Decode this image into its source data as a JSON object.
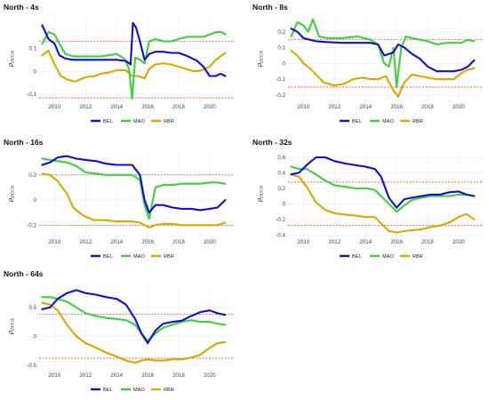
{
  "colors": {
    "BEL": "#1010c8",
    "MAO": "#3fcf3f",
    "RBR": "#dba800",
    "threshold": "#c0392b"
  },
  "y_axis_label": "ρ",
  "y_axis_label_sub": "DCCA",
  "chart_data": [
    {
      "type": "line",
      "title": "North - 4s",
      "xlim": [
        2009,
        2021.5
      ],
      "xticks": [
        2010,
        2012,
        2014,
        2016,
        2018,
        2020
      ],
      "ylim": [
        -0.13,
        0.24
      ],
      "yticks": [
        -0.1,
        0.0,
        0.1
      ],
      "thresholds": [
        0.13,
        -0.115
      ],
      "legend": [
        "BEL",
        "MAO",
        "RBR"
      ],
      "series": [
        {
          "name": "BEL",
          "x": [
            2009.2,
            2009.6,
            2010.0,
            2010.3,
            2010.7,
            2011.2,
            2012.0,
            2013.0,
            2014.0,
            2014.6,
            2014.9,
            2015.05,
            2015.25,
            2015.5,
            2015.8,
            2016.1,
            2016.5,
            2017.0,
            2017.5,
            2018.0,
            2018.6,
            2019.2,
            2019.6,
            2020.0,
            2020.4,
            2020.7,
            2021.0
          ],
          "y": [
            0.2,
            0.14,
            0.12,
            0.07,
            0.055,
            0.05,
            0.05,
            0.05,
            0.05,
            0.045,
            0.03,
            0.21,
            0.19,
            0.13,
            0.05,
            0.075,
            0.085,
            0.085,
            0.08,
            0.08,
            0.065,
            0.045,
            0.02,
            -0.02,
            -0.02,
            -0.01,
            -0.02
          ]
        },
        {
          "name": "MAO",
          "x": [
            2009.2,
            2009.6,
            2010.0,
            2010.3,
            2010.7,
            2011.2,
            2012.0,
            2013.0,
            2014.0,
            2014.5,
            2014.8,
            2015.0,
            2015.2,
            2015.5,
            2015.8,
            2016.1,
            2016.5,
            2017.0,
            2017.5,
            2018.0,
            2018.6,
            2019.2,
            2019.6,
            2020.0,
            2020.4,
            2020.8,
            2021.0
          ],
          "y": [
            0.12,
            0.17,
            0.16,
            0.12,
            0.075,
            0.065,
            0.065,
            0.065,
            0.075,
            0.055,
            0.01,
            -0.12,
            0.06,
            0.05,
            0.035,
            0.13,
            0.14,
            0.13,
            0.13,
            0.14,
            0.15,
            0.15,
            0.15,
            0.16,
            0.17,
            0.17,
            0.16
          ]
        },
        {
          "name": "RBR",
          "x": [
            2009.2,
            2009.6,
            2010.0,
            2010.4,
            2010.8,
            2011.3,
            2012.0,
            2012.6,
            2013.0,
            2013.5,
            2014.0,
            2014.6,
            2015.0,
            2015.4,
            2015.8,
            2016.1,
            2016.5,
            2017.0,
            2017.5,
            2018.0,
            2018.5,
            2019.0,
            2019.5,
            2020.0,
            2020.4,
            2020.8,
            2021.0
          ],
          "y": [
            0.07,
            0.09,
            0.03,
            -0.02,
            -0.035,
            -0.045,
            -0.025,
            -0.02,
            -0.01,
            -0.005,
            0.005,
            0.005,
            -0.02,
            -0.02,
            -0.03,
            0.01,
            0.03,
            0.035,
            0.03,
            0.02,
            0.01,
            0.0,
            0.005,
            0.02,
            0.05,
            0.07,
            0.08
          ]
        }
      ]
    },
    {
      "type": "line",
      "title": "North - 8s",
      "xlim": [
        2009,
        2021.5
      ],
      "xticks": [
        2010,
        2012,
        2014,
        2016,
        2018,
        2020
      ],
      "ylim": [
        -0.24,
        0.3
      ],
      "yticks": [
        -0.2,
        -0.1,
        0.0,
        0.1,
        0.2
      ],
      "thresholds": [
        0.15,
        -0.15
      ],
      "legend": [
        "BEL",
        "MAO",
        "RBR"
      ],
      "series": [
        {
          "name": "BEL",
          "x": [
            2009.2,
            2009.6,
            2010.0,
            2010.4,
            2010.8,
            2011.5,
            2012.5,
            2013.5,
            2014.3,
            2014.8,
            2015.2,
            2015.5,
            2015.8,
            2016.1,
            2016.5,
            2017.0,
            2017.5,
            2018.0,
            2018.6,
            2019.2,
            2019.7,
            2020.2,
            2020.6,
            2021.0
          ],
          "y": [
            0.22,
            0.2,
            0.16,
            0.15,
            0.14,
            0.135,
            0.13,
            0.13,
            0.13,
            0.12,
            0.05,
            0.06,
            0.07,
            0.12,
            0.1,
            0.06,
            0.03,
            -0.02,
            -0.05,
            -0.05,
            -0.05,
            -0.04,
            -0.02,
            0.02
          ]
        },
        {
          "name": "MAO",
          "x": [
            2009.2,
            2009.6,
            2010.0,
            2010.3,
            2010.6,
            2011.0,
            2011.5,
            2012.5,
            2013.5,
            2014.3,
            2014.8,
            2015.2,
            2015.5,
            2015.8,
            2016.0,
            2016.3,
            2016.6,
            2017.0,
            2017.5,
            2018.0,
            2018.6,
            2019.2,
            2019.7,
            2020.2,
            2020.6,
            2021.0
          ],
          "y": [
            0.17,
            0.26,
            0.24,
            0.2,
            0.28,
            0.17,
            0.16,
            0.16,
            0.17,
            0.15,
            0.12,
            0.0,
            -0.02,
            0.1,
            -0.15,
            0.1,
            0.17,
            0.16,
            0.15,
            0.14,
            0.12,
            0.13,
            0.13,
            0.13,
            0.15,
            0.14
          ]
        },
        {
          "name": "RBR",
          "x": [
            2009.2,
            2009.6,
            2010.0,
            2010.4,
            2010.8,
            2011.3,
            2012.0,
            2012.6,
            2013.2,
            2013.8,
            2014.3,
            2014.8,
            2015.3,
            2015.8,
            2016.1,
            2016.5,
            2017.0,
            2017.5,
            2018.0,
            2018.6,
            2019.2,
            2019.7,
            2020.2,
            2020.6,
            2021.0
          ],
          "y": [
            0.08,
            0.05,
            0.0,
            -0.03,
            -0.07,
            -0.12,
            -0.14,
            -0.13,
            -0.1,
            -0.09,
            -0.1,
            -0.1,
            -0.08,
            -0.17,
            -0.21,
            -0.12,
            -0.07,
            -0.08,
            -0.09,
            -0.1,
            -0.1,
            -0.1,
            -0.06,
            -0.04,
            -0.03
          ]
        }
      ]
    },
    {
      "type": "line",
      "title": "North - 16s",
      "xlim": [
        2009,
        2021.5
      ],
      "xticks": [
        2010,
        2012,
        2014,
        2016,
        2018,
        2020
      ],
      "ylim": [
        -0.29,
        0.39
      ],
      "yticks": [
        -0.2,
        0.0,
        0.2
      ],
      "thresholds": [
        0.2,
        -0.2
      ],
      "legend": [
        "BEL",
        "MAO",
        "RBR"
      ],
      "series": [
        {
          "name": "BEL",
          "x": [
            2009.2,
            2009.7,
            2010.2,
            2010.8,
            2011.4,
            2012.0,
            2012.7,
            2013.3,
            2014.0,
            2014.6,
            2015.0,
            2015.5,
            2015.8,
            2016.1,
            2016.5,
            2017.0,
            2017.6,
            2018.2,
            2018.8,
            2019.4,
            2020.0,
            2020.5,
            2021.0
          ],
          "y": [
            0.28,
            0.3,
            0.34,
            0.35,
            0.33,
            0.32,
            0.31,
            0.29,
            0.28,
            0.28,
            0.28,
            0.2,
            0.0,
            -0.1,
            -0.04,
            -0.04,
            -0.06,
            -0.07,
            -0.07,
            -0.08,
            -0.07,
            -0.06,
            0.0
          ]
        },
        {
          "name": "MAO",
          "x": [
            2009.2,
            2009.7,
            2010.2,
            2010.8,
            2011.4,
            2012.0,
            2012.7,
            2013.3,
            2014.0,
            2014.6,
            2015.0,
            2015.5,
            2015.8,
            2016.1,
            2016.5,
            2017.0,
            2017.6,
            2018.2,
            2018.8,
            2019.4,
            2020.0,
            2020.5,
            2021.0
          ],
          "y": [
            0.33,
            0.32,
            0.31,
            0.3,
            0.27,
            0.22,
            0.21,
            0.2,
            0.2,
            0.2,
            0.2,
            0.16,
            -0.04,
            -0.15,
            0.1,
            0.12,
            0.12,
            0.13,
            0.13,
            0.13,
            0.14,
            0.14,
            0.13
          ]
        },
        {
          "name": "RBR",
          "x": [
            2009.2,
            2009.7,
            2010.2,
            2010.8,
            2011.2,
            2011.8,
            2012.5,
            2013.2,
            2014.0,
            2014.6,
            2015.0,
            2015.5,
            2015.8,
            2016.1,
            2016.5,
            2017.0,
            2017.6,
            2018.2,
            2018.8,
            2019.4,
            2020.0,
            2020.5,
            2021.0
          ],
          "y": [
            0.21,
            0.2,
            0.15,
            0.05,
            -0.06,
            -0.12,
            -0.16,
            -0.16,
            -0.17,
            -0.17,
            -0.17,
            -0.18,
            -0.2,
            -0.22,
            -0.2,
            -0.19,
            -0.19,
            -0.2,
            -0.2,
            -0.2,
            -0.2,
            -0.2,
            -0.18
          ]
        }
      ]
    },
    {
      "type": "line",
      "title": "North - 32s",
      "xlim": [
        2009,
        2021.5
      ],
      "xticks": [
        2010,
        2012,
        2014,
        2016,
        2018,
        2020
      ],
      "ylim": [
        -0.42,
        0.68
      ],
      "yticks": [
        -0.4,
        -0.2,
        0.0,
        0.2,
        0.4,
        0.6
      ],
      "thresholds": [
        0.28,
        -0.28
      ],
      "legend": [
        "BEL",
        "MAO",
        "RBR"
      ],
      "series": [
        {
          "name": "BEL",
          "x": [
            2009.2,
            2009.7,
            2010.2,
            2010.8,
            2011.4,
            2012.0,
            2012.7,
            2013.3,
            2014.0,
            2014.6,
            2015.0,
            2015.5,
            2016.0,
            2016.5,
            2017.0,
            2017.6,
            2018.2,
            2018.8,
            2019.4,
            2020.0,
            2020.5,
            2021.0
          ],
          "y": [
            0.38,
            0.4,
            0.5,
            0.6,
            0.6,
            0.55,
            0.52,
            0.5,
            0.48,
            0.45,
            0.35,
            0.08,
            -0.05,
            0.06,
            0.08,
            0.1,
            0.12,
            0.12,
            0.15,
            0.16,
            0.12,
            0.1
          ]
        },
        {
          "name": "MAO",
          "x": [
            2009.2,
            2009.7,
            2010.2,
            2010.8,
            2011.4,
            2012.0,
            2012.7,
            2013.3,
            2014.0,
            2014.6,
            2015.0,
            2015.5,
            2016.0,
            2016.5,
            2017.0,
            2017.6,
            2018.2,
            2018.8,
            2019.4,
            2020.0,
            2020.5,
            2021.0
          ],
          "y": [
            0.48,
            0.45,
            0.45,
            0.38,
            0.3,
            0.24,
            0.22,
            0.2,
            0.2,
            0.18,
            0.1,
            0.0,
            -0.1,
            -0.02,
            0.05,
            0.08,
            0.1,
            0.1,
            0.1,
            0.12,
            0.12,
            0.1
          ]
        },
        {
          "name": "RBR",
          "x": [
            2009.2,
            2009.7,
            2010.2,
            2010.8,
            2011.4,
            2012.0,
            2012.7,
            2013.3,
            2014.0,
            2014.6,
            2015.0,
            2015.5,
            2016.0,
            2016.5,
            2017.0,
            2017.6,
            2018.2,
            2018.8,
            2019.4,
            2020.0,
            2020.5,
            2021.0
          ],
          "y": [
            0.38,
            0.35,
            0.22,
            0.02,
            -0.08,
            -0.12,
            -0.14,
            -0.15,
            -0.17,
            -0.17,
            -0.25,
            -0.35,
            -0.37,
            -0.35,
            -0.34,
            -0.33,
            -0.3,
            -0.28,
            -0.24,
            -0.17,
            -0.13,
            -0.2
          ]
        }
      ]
    },
    {
      "type": "line",
      "title": "North - 64s",
      "xlim": [
        2009,
        2021.5
      ],
      "xticks": [
        2010,
        2012,
        2014,
        2016,
        2018,
        2020
      ],
      "ylim": [
        -0.58,
        0.93
      ],
      "yticks": [
        -0.5,
        0.0,
        0.5
      ],
      "thresholds": [
        0.38,
        -0.38
      ],
      "legend": [
        "BEL",
        "MAO",
        "RBR"
      ],
      "series": [
        {
          "name": "BEL",
          "x": [
            2009.2,
            2009.7,
            2010.2,
            2010.8,
            2011.4,
            2012.0,
            2012.7,
            2013.3,
            2014.0,
            2014.6,
            2015.2,
            2015.6,
            2016.0,
            2016.5,
            2017.0,
            2017.6,
            2018.2,
            2018.8,
            2019.4,
            2020.0,
            2020.5,
            2021.0
          ],
          "y": [
            0.47,
            0.5,
            0.65,
            0.75,
            0.8,
            0.75,
            0.72,
            0.68,
            0.65,
            0.55,
            0.3,
            0.05,
            -0.12,
            0.1,
            0.22,
            0.25,
            0.27,
            0.35,
            0.42,
            0.45,
            0.4,
            0.37
          ]
        },
        {
          "name": "MAO",
          "x": [
            2009.2,
            2009.7,
            2010.2,
            2010.8,
            2011.4,
            2012.0,
            2012.7,
            2013.3,
            2014.0,
            2014.6,
            2015.2,
            2015.6,
            2016.0,
            2016.5,
            2017.0,
            2017.6,
            2018.2,
            2018.8,
            2019.4,
            2020.0,
            2020.5,
            2021.0
          ],
          "y": [
            0.68,
            0.68,
            0.65,
            0.6,
            0.5,
            0.4,
            0.35,
            0.32,
            0.3,
            0.28,
            0.2,
            0.05,
            -0.08,
            0.05,
            0.15,
            0.2,
            0.25,
            0.28,
            0.25,
            0.25,
            0.22,
            0.2
          ]
        },
        {
          "name": "RBR",
          "x": [
            2009.2,
            2009.7,
            2010.2,
            2010.8,
            2011.4,
            2012.0,
            2012.7,
            2013.3,
            2014.0,
            2014.6,
            2015.2,
            2015.6,
            2016.0,
            2016.5,
            2017.0,
            2017.6,
            2018.2,
            2018.8,
            2019.4,
            2020.0,
            2020.5,
            2021.0
          ],
          "y": [
            0.58,
            0.55,
            0.45,
            0.2,
            0.0,
            -0.12,
            -0.2,
            -0.28,
            -0.35,
            -0.42,
            -0.46,
            -0.42,
            -0.4,
            -0.42,
            -0.42,
            -0.4,
            -0.4,
            -0.37,
            -0.32,
            -0.2,
            -0.12,
            -0.1
          ]
        }
      ]
    }
  ]
}
